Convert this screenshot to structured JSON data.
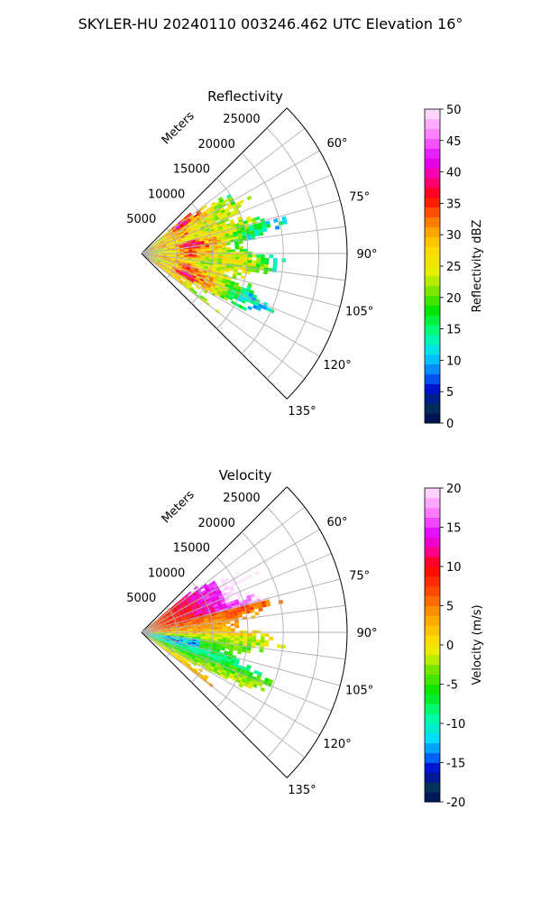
{
  "figure": {
    "suptitle": "SKYLER-HU  20240110  003246.462 UTC Elevation 16°"
  },
  "chart_data": [
    {
      "type": "heatmap",
      "title": "Reflectivity",
      "projection": "polar",
      "range_axis_label": "Meters",
      "range_ticks": [
        "5000",
        "10000",
        "15000",
        "20000",
        "25000"
      ],
      "azimuth_ticks": [
        "60°",
        "75°",
        "90°",
        "105°",
        "120°",
        "135°"
      ],
      "azimuth_range_deg": [
        45,
        135
      ],
      "range_max_m": 29000,
      "grid": true,
      "colorbar": {
        "label": "Reflectivity dBZ",
        "range": [
          0,
          50
        ],
        "ticks": [
          "0",
          "5",
          "10",
          "15",
          "20",
          "25",
          "30",
          "35",
          "40",
          "45",
          "50"
        ]
      },
      "data_extent_m": 19000,
      "data_azimuth_deg": [
        52,
        125
      ],
      "typical_values_dbz": {
        "near": 28,
        "band": 36,
        "outer": 16
      }
    },
    {
      "type": "heatmap",
      "title": "Velocity",
      "projection": "polar",
      "range_axis_label": "Meters",
      "range_ticks": [
        "5000",
        "10000",
        "15000",
        "20000",
        "25000"
      ],
      "azimuth_ticks": [
        "60°",
        "75°",
        "90°",
        "105°",
        "120°",
        "135°"
      ],
      "azimuth_range_deg": [
        45,
        135
      ],
      "range_max_m": 29000,
      "grid": true,
      "colorbar": {
        "label": "Velocity (m/s)",
        "range": [
          -20,
          20
        ],
        "ticks": [
          "-20",
          "-15",
          "-10",
          "-5",
          "0",
          "5",
          "10",
          "15",
          "20"
        ]
      },
      "data_extent_m": 19000,
      "data_azimuth_deg": [
        52,
        125
      ],
      "typical_values_ms": {
        "north_far": 14,
        "north_mid": 8,
        "center": 2,
        "south_mid": -8,
        "south_far": -3
      }
    }
  ],
  "colors": {
    "reflectivity_stops": [
      [
        0,
        "#000a55"
      ],
      [
        3,
        "#03355a"
      ],
      [
        5,
        "#0000c8"
      ],
      [
        8,
        "#0078ff"
      ],
      [
        11,
        "#00dcff"
      ],
      [
        14,
        "#00ff9a"
      ],
      [
        18,
        "#00e600"
      ],
      [
        21,
        "#7be600"
      ],
      [
        24,
        "#e6f000"
      ],
      [
        28,
        "#ffd700"
      ],
      [
        31,
        "#ff9900"
      ],
      [
        34,
        "#ff4400"
      ],
      [
        36,
        "#ff0000"
      ],
      [
        39,
        "#ff0090"
      ],
      [
        42,
        "#e000ff"
      ],
      [
        46,
        "#ff80ff"
      ],
      [
        50,
        "#ffe8ff"
      ]
    ],
    "velocity_stops": [
      [
        -20,
        "#000a55"
      ],
      [
        -18,
        "#03355a"
      ],
      [
        -16,
        "#0000c8"
      ],
      [
        -14,
        "#0078ff"
      ],
      [
        -12,
        "#00dcff"
      ],
      [
        -9,
        "#00ff9a"
      ],
      [
        -6,
        "#00e600"
      ],
      [
        -3,
        "#7be600"
      ],
      [
        -1,
        "#e6f000"
      ],
      [
        1,
        "#ffd700"
      ],
      [
        4,
        "#ff9900"
      ],
      [
        7,
        "#ff4400"
      ],
      [
        10,
        "#ff0000"
      ],
      [
        12,
        "#ff0090"
      ],
      [
        14,
        "#e000ff"
      ],
      [
        17,
        "#ff80ff"
      ],
      [
        20,
        "#ffe8ff"
      ]
    ]
  }
}
